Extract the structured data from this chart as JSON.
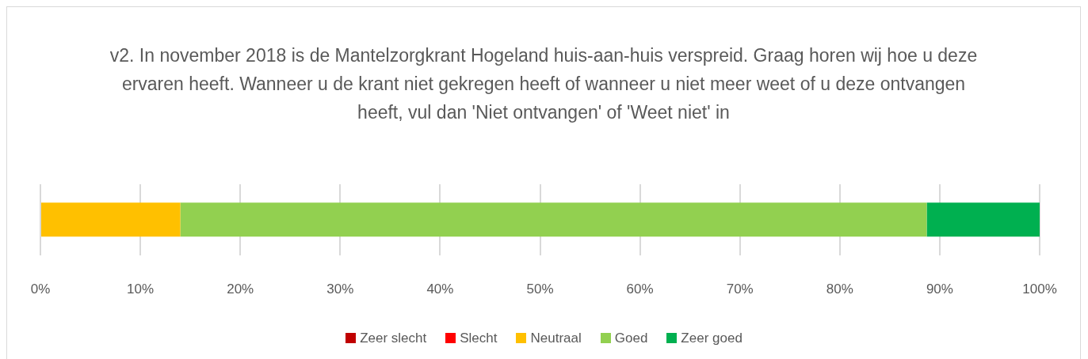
{
  "chart_data": {
    "type": "bar",
    "orientation": "horizontal",
    "stacked": true,
    "title": "v2. In november 2018 is de Mantelzorgkrant Hogeland huis-aan-huis verspreid. Graag horen wij hoe u deze ervaren heeft. Wanneer u de krant niet gekregen heeft of wanneer u niet meer weet of u deze ontvangen heeft, vul dan 'Niet ontvangen' of 'Weet niet' in",
    "categories": [
      null
    ],
    "series": [
      {
        "name": "Zeer slecht",
        "color": "#c00000",
        "values": [
          0
        ]
      },
      {
        "name": "Slecht",
        "color": "#ff0000",
        "values": [
          0
        ]
      },
      {
        "name": "Neutraal",
        "color": "#ffc000",
        "values": [
          14.0
        ]
      },
      {
        "name": "Goed",
        "color": "#92d050",
        "values": [
          74.7
        ]
      },
      {
        "name": "Zeer goed",
        "color": "#00b050",
        "values": [
          11.3
        ]
      }
    ],
    "xlim": [
      0,
      100
    ],
    "xticks": [
      {
        "value": 0,
        "label": "0%"
      },
      {
        "value": 10,
        "label": "10%"
      },
      {
        "value": 20,
        "label": "20%"
      },
      {
        "value": 30,
        "label": "30%"
      },
      {
        "value": 40,
        "label": "40%"
      },
      {
        "value": 50,
        "label": "50%"
      },
      {
        "value": 60,
        "label": "60%"
      },
      {
        "value": 70,
        "label": "70%"
      },
      {
        "value": 80,
        "label": "80%"
      },
      {
        "value": 90,
        "label": "90%"
      },
      {
        "value": 100,
        "label": "100%"
      }
    ],
    "grid": "x",
    "legend": "bottom"
  }
}
